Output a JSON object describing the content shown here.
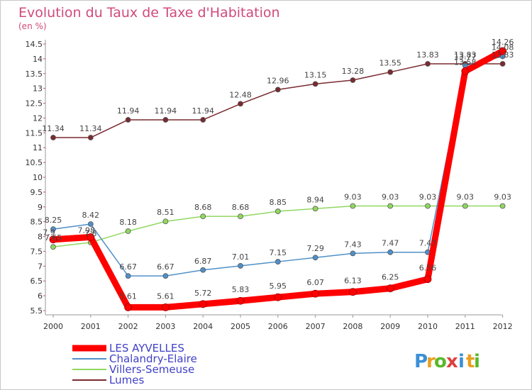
{
  "title": "Evolution du Taux de Taxe d'Habitation",
  "subtitle": "(en %)",
  "brand": {
    "letters": [
      "P",
      "r",
      "o",
      "x",
      "i",
      "t",
      "i"
    ],
    "colors": [
      "#3a8fd8",
      "#e8a020",
      "#58b828",
      "#e04040",
      "#3a8fd8",
      "#e8a020",
      "#58b828"
    ]
  },
  "chart_data": {
    "type": "line",
    "x": [
      "2000",
      "2001",
      "2002",
      "2003",
      "2004",
      "2005",
      "2006",
      "2007",
      "2008",
      "2009",
      "2010",
      "2011",
      "2012"
    ],
    "ylim": [
      5.5,
      14.5
    ],
    "yticks": [
      "5.5",
      "6",
      "6.5",
      "7",
      "7.5",
      "8",
      "8.5",
      "9",
      "9.5",
      "10",
      "10.5",
      "11",
      "11.5",
      "12",
      "12.5",
      "13",
      "13.5",
      "14",
      "14.5"
    ],
    "grid": false,
    "legend_position": "bottom-left",
    "series": [
      {
        "name": "LES AYVELLES",
        "color": "#ff0000",
        "values": [
          7.9,
          7.98,
          5.61,
          5.61,
          5.72,
          5.83,
          5.95,
          6.07,
          6.13,
          6.25,
          6.56,
          13.58,
          14.26
        ],
        "labels": [
          "7.9",
          "7.98",
          "5.61",
          "5.61",
          "5.72",
          "5.83",
          "5.95",
          "6.07",
          "6.13",
          "6.25",
          "6.56",
          "13.58",
          "14.26"
        ]
      },
      {
        "name": "Chalandry-Elaire",
        "color": "#5090c8",
        "values": [
          8.25,
          8.42,
          6.67,
          6.67,
          6.87,
          7.01,
          7.15,
          7.29,
          7.43,
          7.47,
          7.47,
          13.77,
          14.08
        ],
        "labels": [
          "8.25",
          "8.42",
          "6.67",
          "6.67",
          "6.87",
          "7.01",
          "7.15",
          "7.29",
          "7.43",
          "7.47",
          "7.47",
          "13.77",
          "14.08"
        ]
      },
      {
        "name": "Villers-Semeuse",
        "color": "#90d860",
        "values": [
          7.65,
          7.8,
          8.18,
          8.51,
          8.68,
          8.68,
          8.85,
          8.94,
          9.03,
          9.03,
          9.03,
          9.03,
          9.03
        ],
        "labels": [
          "7.65",
          "7.8",
          "8.18",
          "8.51",
          "8.68",
          "8.68",
          "8.85",
          "8.94",
          "9.03",
          "9.03",
          "9.03",
          "9.03",
          "9.03"
        ]
      },
      {
        "name": "Lumes",
        "color": "#7a2a30",
        "values": [
          11.34,
          11.34,
          11.94,
          11.94,
          11.94,
          12.48,
          12.96,
          13.15,
          13.28,
          13.55,
          13.83,
          13.83,
          13.83
        ],
        "labels": [
          "11.34",
          "11.34",
          "11.94",
          "11.94",
          "11.94",
          "12.48",
          "12.96",
          "13.15",
          "13.28",
          "13.55",
          "13.83",
          "13.83",
          "13.83"
        ]
      }
    ]
  }
}
